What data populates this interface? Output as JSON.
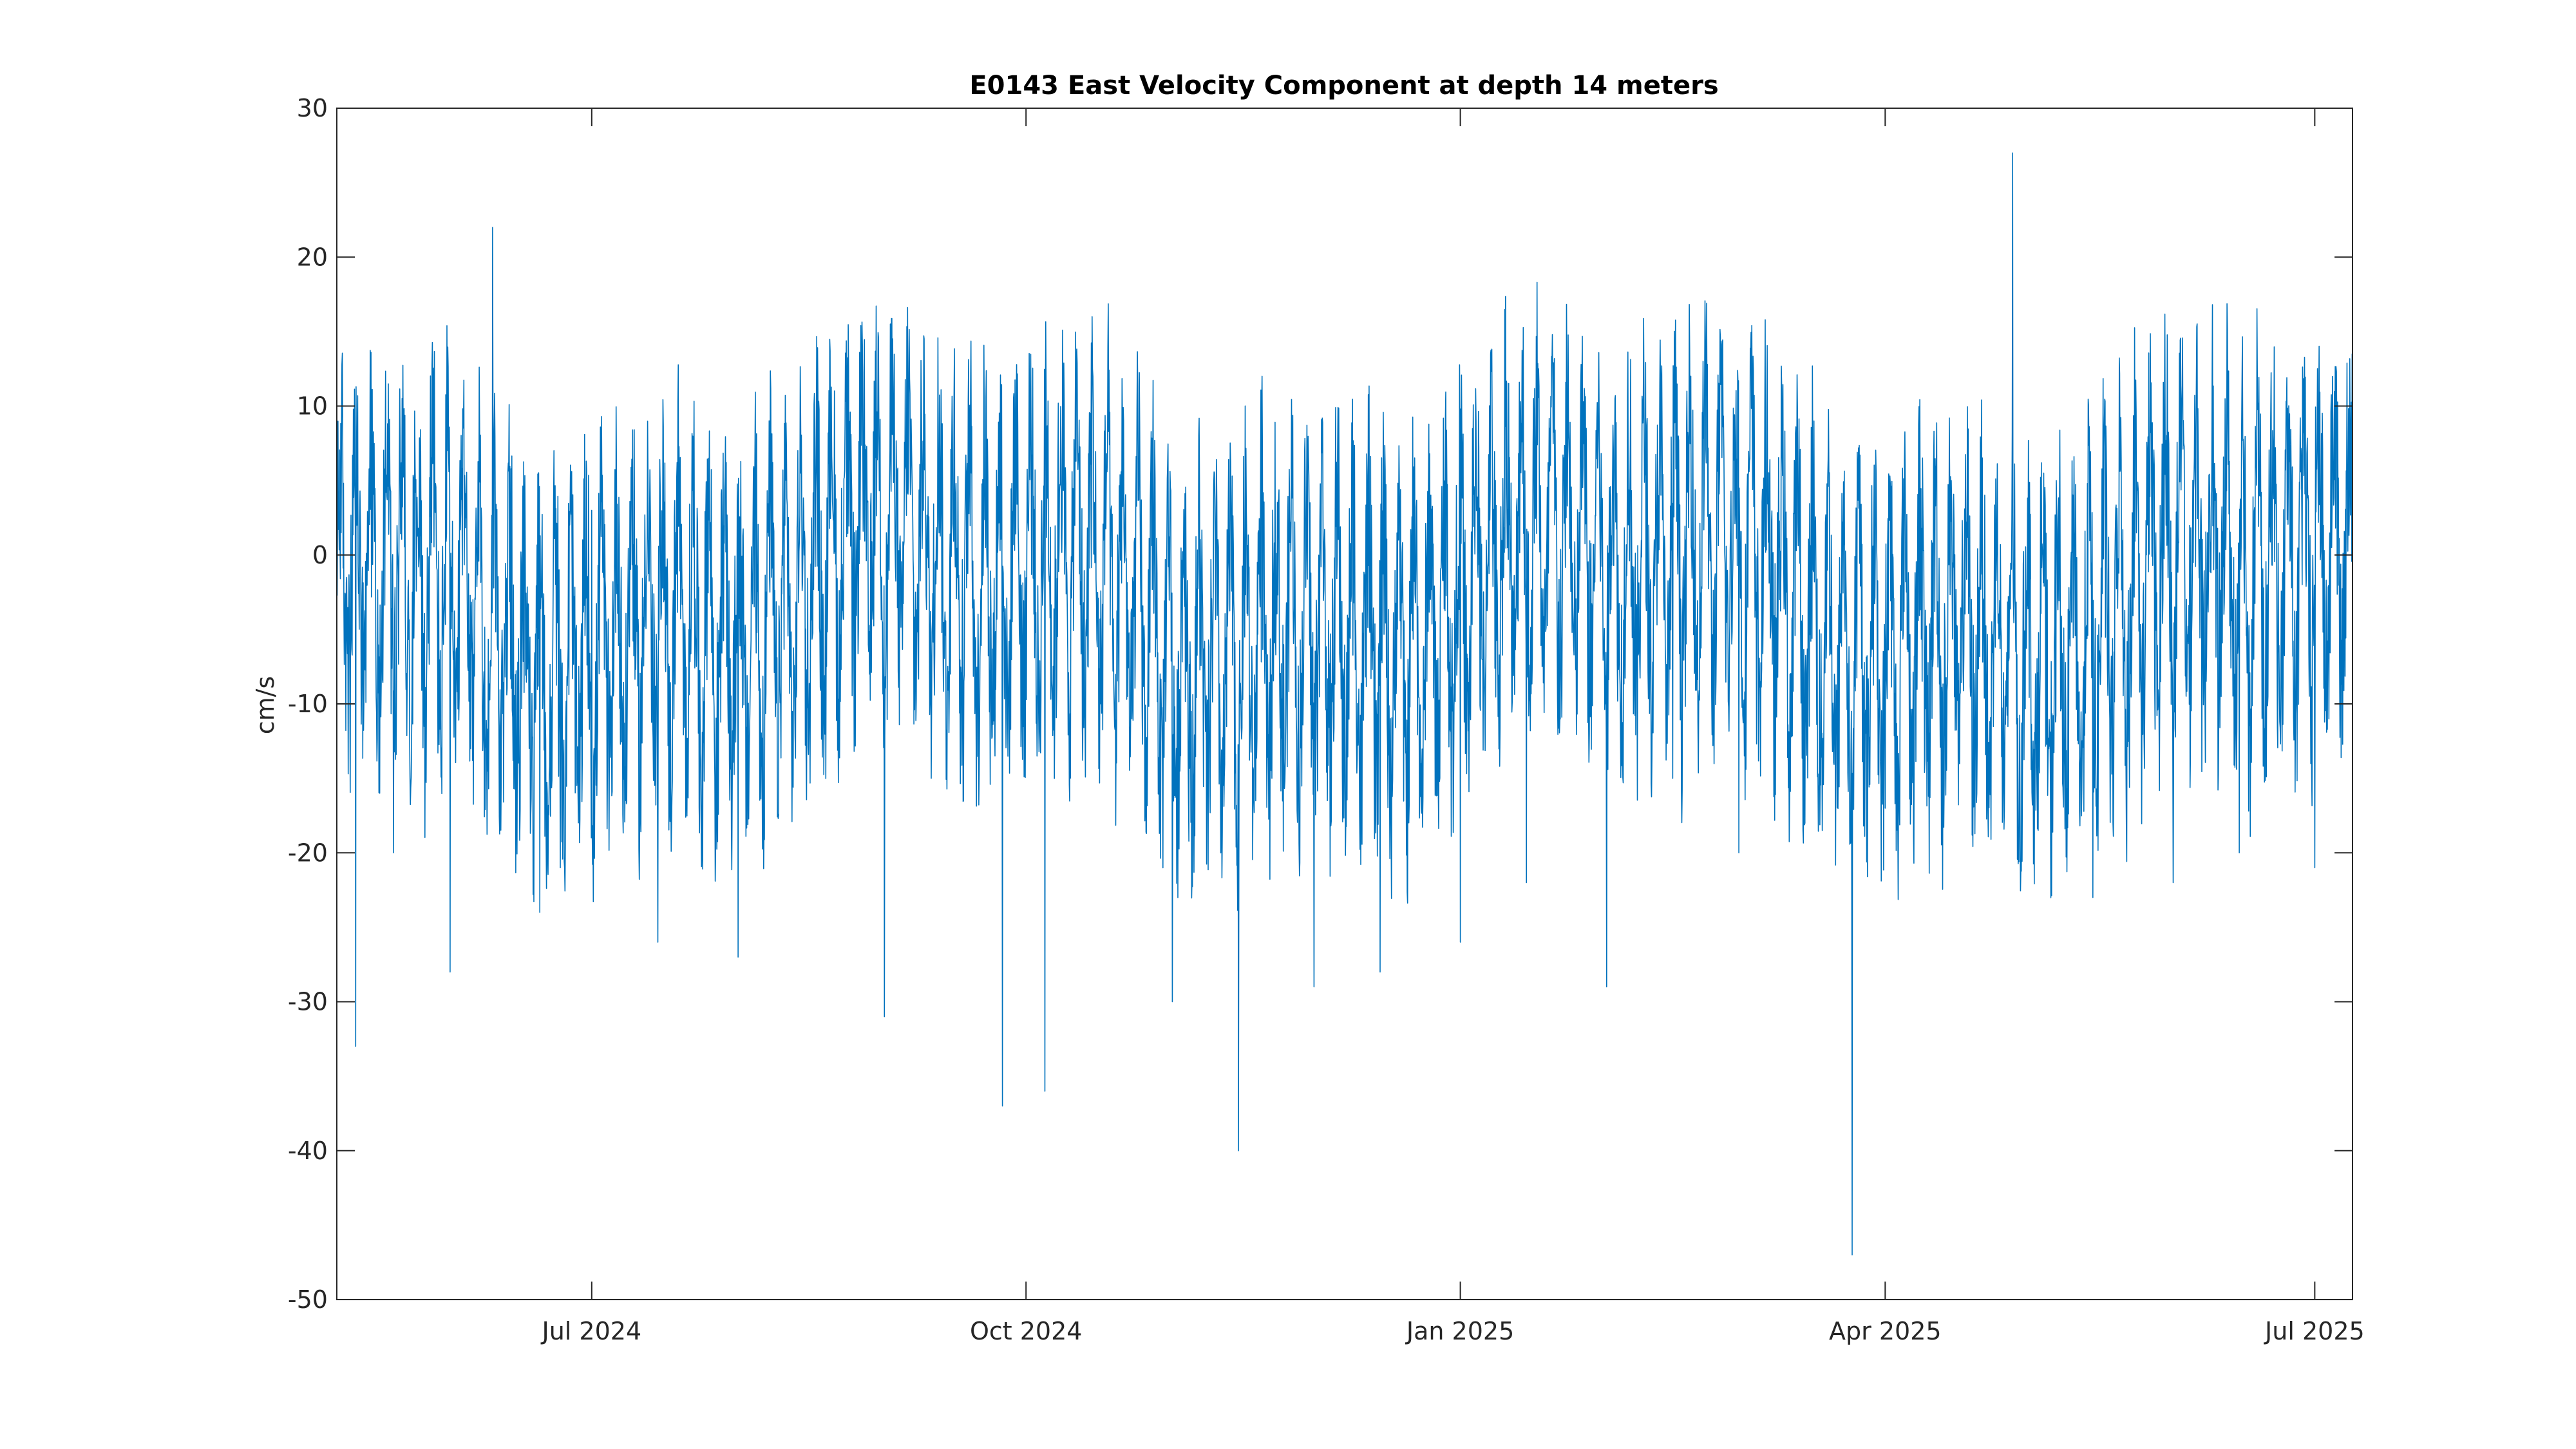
{
  "chart_data": {
    "type": "line",
    "title": "E0143 East Velocity Component at depth 14 meters",
    "xlabel": "",
    "ylabel": "cm/s",
    "x_range": [
      "2024-05-08",
      "2025-07-09"
    ],
    "ylim": [
      -50,
      30
    ],
    "y_ticks": [
      30,
      20,
      10,
      0,
      -10,
      -20,
      -30,
      -40,
      -50
    ],
    "x_ticks": [
      {
        "date": "2024-07-01",
        "label": "Jul 2024"
      },
      {
        "date": "2024-10-01",
        "label": "Oct 2024"
      },
      {
        "date": "2025-01-01",
        "label": "Jan 2025"
      },
      {
        "date": "2025-04-01",
        "label": "Apr 2025"
      },
      {
        "date": "2025-07-01",
        "label": "Jul 2025"
      }
    ],
    "grid": false,
    "line_color": "#0072BD",
    "series": [
      {
        "x": [
          "2024-05-08",
          "2024-05-12",
          "2024-05-20",
          "2024-06-01",
          "2024-06-10",
          "2024-06-20",
          "2024-07-01",
          "2024-07-15",
          "2024-08-01",
          "2024-08-15",
          "2024-09-01",
          "2024-09-15",
          "2024-09-26",
          "2024-10-05",
          "2024-10-15",
          "2024-11-01",
          "2024-11-15",
          "2024-11-20",
          "2024-12-01",
          "2024-12-15",
          "2025-01-01",
          "2025-01-15",
          "2025-02-01",
          "2025-02-15",
          "2025-03-01",
          "2025-03-15",
          "2025-03-25",
          "2025-04-01",
          "2025-04-15",
          "2025-04-28",
          "2025-05-15",
          "2025-06-01",
          "2025-06-15",
          "2025-07-01",
          "2025-07-09"
        ],
        "y": [
          5,
          -33,
          -20,
          -28,
          22,
          -24,
          3,
          -26,
          -27,
          0,
          -31,
          -8,
          -37,
          -36,
          16,
          -30,
          -40,
          12,
          -29,
          -28,
          -26,
          -22,
          -29,
          -15,
          -20,
          -18,
          -47,
          -17,
          5,
          27,
          -23,
          -22,
          -20,
          -21,
          0
        ]
      }
    ]
  }
}
